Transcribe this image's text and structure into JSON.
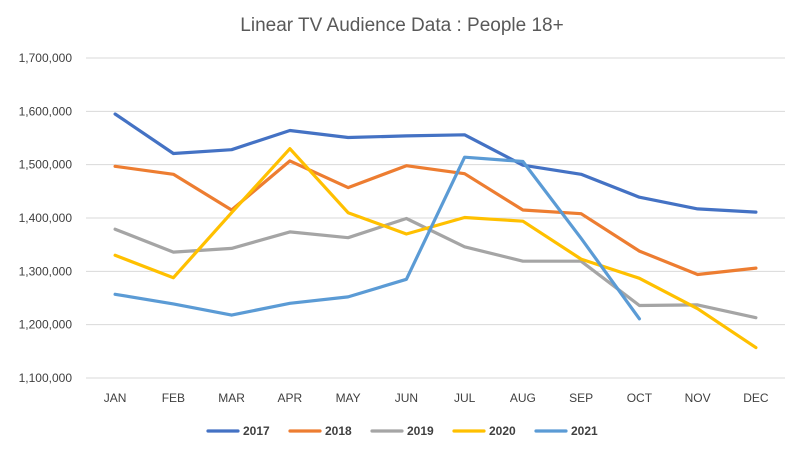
{
  "chart_data": {
    "type": "line",
    "title": "Linear TV Audience Data : People 18+",
    "xlabel": "",
    "ylabel": "",
    "categories": [
      "JAN",
      "FEB",
      "MAR",
      "APR",
      "MAY",
      "JUN",
      "JUL",
      "AUG",
      "SEP",
      "OCT",
      "NOV",
      "DEC"
    ],
    "ylim": [
      1100000,
      1700000
    ],
    "yticks": [
      1100000,
      1200000,
      1300000,
      1400000,
      1500000,
      1600000,
      1700000
    ],
    "ytick_labels": [
      "1,100,000",
      "1,200,000",
      "1,300,000",
      "1,400,000",
      "1,500,000",
      "1,600,000",
      "1,700,000"
    ],
    "grid": true,
    "legend": "bottom",
    "series": [
      {
        "name": "2017",
        "color": "#4472c4",
        "values": [
          1595000,
          1521000,
          1528000,
          1564000,
          1551000,
          1554000,
          1556000,
          1499000,
          1482000,
          1439000,
          1417000,
          1411000
        ]
      },
      {
        "name": "2018",
        "color": "#ed7d31",
        "values": [
          1497000,
          1482000,
          1415000,
          1507000,
          1457000,
          1498000,
          1483000,
          1415000,
          1408000,
          1338000,
          1294000,
          1306000
        ]
      },
      {
        "name": "2019",
        "color": "#a5a5a5",
        "values": [
          1379000,
          1336000,
          1343000,
          1374000,
          1363000,
          1399000,
          1346000,
          1319000,
          1319000,
          1236000,
          1237000,
          1213000
        ]
      },
      {
        "name": "2020",
        "color": "#ffc000",
        "values": [
          1330000,
          1288000,
          1410000,
          1530000,
          1410000,
          1370000,
          1401000,
          1394000,
          1323000,
          1287000,
          1230000,
          1157000
        ]
      },
      {
        "name": "2021",
        "color": "#5b9bd5",
        "values": [
          1257000,
          1239000,
          1218000,
          1240000,
          1252000,
          1285000,
          1514000,
          1506000,
          1362000,
          1211000,
          null,
          null
        ]
      }
    ]
  }
}
